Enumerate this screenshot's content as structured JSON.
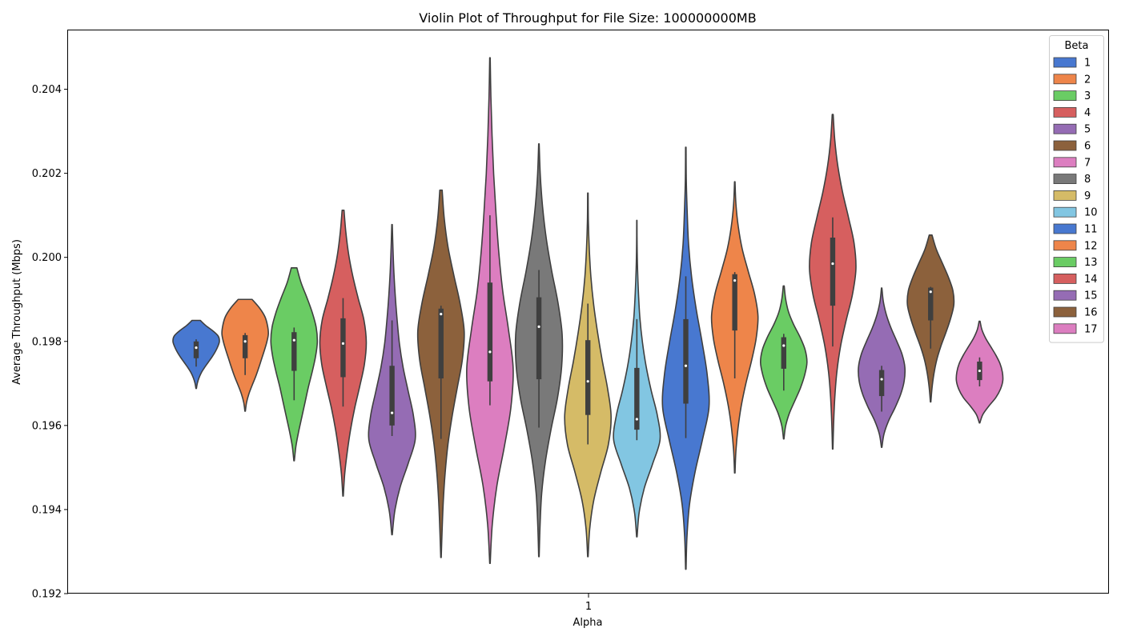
{
  "chart_data": {
    "type": "violin",
    "title": "Violin Plot of Throughput for File Size: 100000000MB",
    "xlabel": "Alpha",
    "ylabel": "Average Throughput (Mbps)",
    "categories": [
      "1"
    ],
    "ylim": [
      0.192,
      0.2054
    ],
    "yticks": [
      "0.192",
      "0.194",
      "0.196",
      "0.198",
      "0.200",
      "0.202",
      "0.204"
    ],
    "grid": false,
    "legend": {
      "title": "Beta",
      "position": "top-right"
    },
    "series": [
      {
        "name": "1",
        "color": "#4878d0",
        "min": 0.19688,
        "max": 0.1985,
        "q1": 0.1976,
        "median": 0.19785,
        "q3": 0.198,
        "wlo": 0.1974,
        "whi": 0.19805,
        "widths": [
          0.01,
          0.05,
          0.12,
          0.22,
          0.36,
          0.52,
          0.68,
          0.82,
          0.93,
          1.0,
          0.95,
          0.72,
          0.42,
          0.18
        ]
      },
      {
        "name": "2",
        "color": "#ee854a",
        "min": 0.19634,
        "max": 0.199,
        "q1": 0.1976,
        "median": 0.198,
        "q3": 0.19815,
        "wlo": 0.1972,
        "whi": 0.1982,
        "widths": [
          0.01,
          0.06,
          0.16,
          0.3,
          0.45,
          0.58,
          0.7,
          0.82,
          0.93,
          1.0,
          0.96,
          0.85,
          0.62,
          0.3
        ]
      },
      {
        "name": "3",
        "color": "#6acc64",
        "min": 0.19516,
        "max": 0.19975,
        "q1": 0.1973,
        "median": 0.19803,
        "q3": 0.19822,
        "wlo": 0.1966,
        "whi": 0.19833,
        "widths": [
          0.01,
          0.08,
          0.2,
          0.34,
          0.48,
          0.62,
          0.78,
          0.92,
          1.0,
          0.95,
          0.78,
          0.55,
          0.3,
          0.12
        ]
      },
      {
        "name": "4",
        "color": "#d65f5f",
        "min": 0.19432,
        "max": 0.20112,
        "q1": 0.19715,
        "median": 0.19795,
        "q3": 0.19855,
        "wlo": 0.19645,
        "whi": 0.19903,
        "widths": [
          0.01,
          0.07,
          0.18,
          0.32,
          0.5,
          0.72,
          0.92,
          1.0,
          0.9,
          0.65,
          0.42,
          0.24,
          0.12,
          0.04
        ]
      },
      {
        "name": "5",
        "color": "#956cb4",
        "min": 0.1934,
        "max": 0.20078,
        "q1": 0.196,
        "median": 0.1963,
        "q3": 0.19742,
        "wlo": 0.19575,
        "whi": 0.1985,
        "widths": [
          0.01,
          0.12,
          0.35,
          0.7,
          1.0,
          0.92,
          0.7,
          0.48,
          0.32,
          0.22,
          0.14,
          0.08,
          0.04,
          0.01
        ]
      },
      {
        "name": "6",
        "color": "#8c613c",
        "min": 0.19286,
        "max": 0.2016,
        "q1": 0.19712,
        "median": 0.19865,
        "q3": 0.19878,
        "wlo": 0.19568,
        "whi": 0.19885,
        "widths": [
          0.01,
          0.05,
          0.1,
          0.18,
          0.3,
          0.48,
          0.7,
          0.92,
          1.0,
          0.82,
          0.55,
          0.3,
          0.14,
          0.05
        ]
      },
      {
        "name": "7",
        "color": "#dc7ec0",
        "min": 0.19272,
        "max": 0.20475,
        "q1": 0.19705,
        "median": 0.19775,
        "q3": 0.1994,
        "wlo": 0.19648,
        "whi": 0.201,
        "widths": [
          0.01,
          0.1,
          0.3,
          0.62,
          0.9,
          1.0,
          0.8,
          0.55,
          0.38,
          0.26,
          0.16,
          0.09,
          0.04,
          0.01
        ]
      },
      {
        "name": "8",
        "color": "#797979",
        "min": 0.19288,
        "max": 0.2027,
        "q1": 0.1971,
        "median": 0.19835,
        "q3": 0.19905,
        "wlo": 0.19595,
        "whi": 0.1997,
        "widths": [
          0.01,
          0.05,
          0.12,
          0.28,
          0.52,
          0.8,
          0.98,
          1.0,
          0.82,
          0.55,
          0.32,
          0.16,
          0.06,
          0.01
        ]
      },
      {
        "name": "9",
        "color": "#d5bb67",
        "min": 0.19288,
        "max": 0.20153,
        "q1": 0.19625,
        "median": 0.19705,
        "q3": 0.19803,
        "wlo": 0.19555,
        "whi": 0.1989,
        "widths": [
          0.01,
          0.08,
          0.25,
          0.55,
          0.88,
          1.0,
          0.85,
          0.62,
          0.42,
          0.25,
          0.13,
          0.06,
          0.02,
          0.01
        ]
      },
      {
        "name": "10",
        "color": "#82c6e2",
        "min": 0.19335,
        "max": 0.20088,
        "q1": 0.1959,
        "median": 0.19615,
        "q3": 0.19737,
        "wlo": 0.19565,
        "whi": 0.19853,
        "widths": [
          0.01,
          0.1,
          0.32,
          0.68,
          1.0,
          0.88,
          0.62,
          0.4,
          0.24,
          0.13,
          0.07,
          0.03,
          0.01,
          0.005
        ]
      },
      {
        "name": "11",
        "color": "#4878d0",
        "min": 0.19258,
        "max": 0.20262,
        "q1": 0.19652,
        "median": 0.19742,
        "q3": 0.19853,
        "wlo": 0.1957,
        "whi": 0.19955,
        "widths": [
          0.01,
          0.05,
          0.16,
          0.4,
          0.72,
          1.0,
          0.92,
          0.7,
          0.45,
          0.25,
          0.12,
          0.06,
          0.02,
          0.01
        ]
      },
      {
        "name": "12",
        "color": "#ee854a",
        "min": 0.19487,
        "max": 0.2018,
        "q1": 0.19826,
        "median": 0.19945,
        "q3": 0.1996,
        "wlo": 0.19712,
        "whi": 0.19965,
        "widths": [
          0.01,
          0.05,
          0.14,
          0.28,
          0.48,
          0.72,
          0.92,
          1.0,
          0.85,
          0.58,
          0.32,
          0.15,
          0.05,
          0.01
        ]
      },
      {
        "name": "13",
        "color": "#6acc64",
        "min": 0.19568,
        "max": 0.19932,
        "q1": 0.19735,
        "median": 0.1979,
        "q3": 0.1981,
        "wlo": 0.19683,
        "whi": 0.19818,
        "widths": [
          0.01,
          0.08,
          0.24,
          0.48,
          0.72,
          0.9,
          1.0,
          0.92,
          0.7,
          0.42,
          0.2,
          0.08,
          0.02
        ]
      },
      {
        "name": "14",
        "color": "#d65f5f",
        "min": 0.19544,
        "max": 0.2034,
        "q1": 0.19885,
        "median": 0.19985,
        "q3": 0.20047,
        "wlo": 0.19788,
        "whi": 0.20095,
        "widths": [
          0.01,
          0.04,
          0.09,
          0.18,
          0.34,
          0.58,
          0.85,
          1.0,
          0.92,
          0.68,
          0.42,
          0.22,
          0.09,
          0.02
        ]
      },
      {
        "name": "15",
        "color": "#956cb4",
        "min": 0.19548,
        "max": 0.19927,
        "q1": 0.1967,
        "median": 0.1971,
        "q3": 0.19732,
        "wlo": 0.19633,
        "whi": 0.19742,
        "widths": [
          0.01,
          0.1,
          0.3,
          0.58,
          0.82,
          0.97,
          1.0,
          0.88,
          0.65,
          0.4,
          0.2,
          0.07,
          0.01
        ]
      },
      {
        "name": "16",
        "color": "#8c613c",
        "min": 0.19656,
        "max": 0.20053,
        "q1": 0.1985,
        "median": 0.19918,
        "q3": 0.19928,
        "wlo": 0.19783,
        "whi": 0.1993,
        "widths": [
          0.01,
          0.06,
          0.14,
          0.26,
          0.44,
          0.66,
          0.86,
          1.0,
          0.96,
          0.76,
          0.5,
          0.24,
          0.06
        ]
      },
      {
        "name": "17",
        "color": "#dc7ec0",
        "min": 0.19606,
        "max": 0.19848,
        "q1": 0.19708,
        "median": 0.1973,
        "q3": 0.19752,
        "wlo": 0.19693,
        "whi": 0.19762,
        "widths": [
          0.01,
          0.14,
          0.4,
          0.7,
          0.9,
          1.0,
          0.98,
          0.88,
          0.7,
          0.48,
          0.26,
          0.1,
          0.02
        ]
      }
    ]
  }
}
